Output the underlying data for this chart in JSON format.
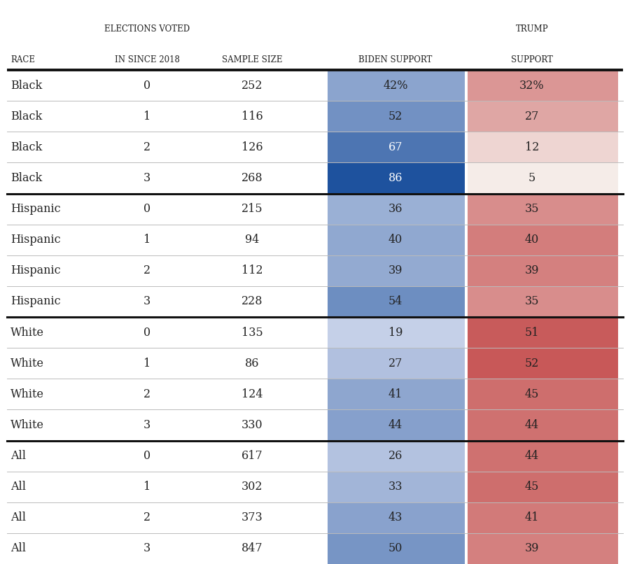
{
  "rows": [
    {
      "race": "Black",
      "elections": 0,
      "sample": 252,
      "biden": 42,
      "trump": 32,
      "biden_pct": true,
      "trump_pct": true
    },
    {
      "race": "Black",
      "elections": 1,
      "sample": 116,
      "biden": 52,
      "trump": 27,
      "biden_pct": false,
      "trump_pct": false
    },
    {
      "race": "Black",
      "elections": 2,
      "sample": 126,
      "biden": 67,
      "trump": 12,
      "biden_pct": false,
      "trump_pct": false
    },
    {
      "race": "Black",
      "elections": 3,
      "sample": 268,
      "biden": 86,
      "trump": 5,
      "biden_pct": false,
      "trump_pct": false
    },
    {
      "race": "Hispanic",
      "elections": 0,
      "sample": 215,
      "biden": 36,
      "trump": 35,
      "biden_pct": false,
      "trump_pct": false
    },
    {
      "race": "Hispanic",
      "elections": 1,
      "sample": 94,
      "biden": 40,
      "trump": 40,
      "biden_pct": false,
      "trump_pct": false
    },
    {
      "race": "Hispanic",
      "elections": 2,
      "sample": 112,
      "biden": 39,
      "trump": 39,
      "biden_pct": false,
      "trump_pct": false
    },
    {
      "race": "Hispanic",
      "elections": 3,
      "sample": 228,
      "biden": 54,
      "trump": 35,
      "biden_pct": false,
      "trump_pct": false
    },
    {
      "race": "White",
      "elections": 0,
      "sample": 135,
      "biden": 19,
      "trump": 51,
      "biden_pct": false,
      "trump_pct": false
    },
    {
      "race": "White",
      "elections": 1,
      "sample": 86,
      "biden": 27,
      "trump": 52,
      "biden_pct": false,
      "trump_pct": false
    },
    {
      "race": "White",
      "elections": 2,
      "sample": 124,
      "biden": 41,
      "trump": 45,
      "biden_pct": false,
      "trump_pct": false
    },
    {
      "race": "White",
      "elections": 3,
      "sample": 330,
      "biden": 44,
      "trump": 44,
      "biden_pct": false,
      "trump_pct": false
    },
    {
      "race": "All",
      "elections": 0,
      "sample": 617,
      "biden": 26,
      "trump": 44,
      "biden_pct": false,
      "trump_pct": false
    },
    {
      "race": "All",
      "elections": 1,
      "sample": 302,
      "biden": 33,
      "trump": 45,
      "biden_pct": false,
      "trump_pct": false
    },
    {
      "race": "All",
      "elections": 2,
      "sample": 373,
      "biden": 43,
      "trump": 41,
      "biden_pct": false,
      "trump_pct": false
    },
    {
      "race": "All",
      "elections": 3,
      "sample": 847,
      "biden": 50,
      "trump": 39,
      "biden_pct": false,
      "trump_pct": false
    }
  ],
  "group_separators_after": [
    3,
    7,
    11
  ],
  "background_color": "#ffffff",
  "thick_line_color": "#111111",
  "thin_line_color": "#bbbbbb",
  "text_color": "#222222",
  "header_font_size": 8.5,
  "cell_font_size": 11.5
}
